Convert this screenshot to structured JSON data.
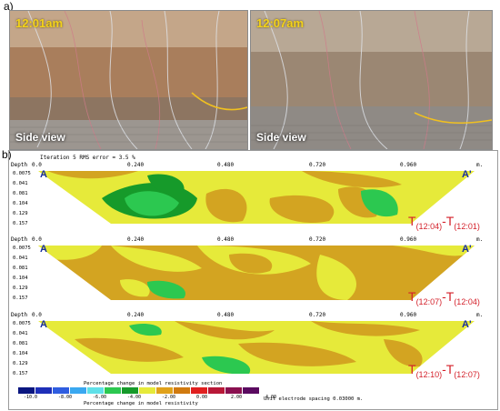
{
  "panel_a": {
    "letter": "a)",
    "photos": [
      {
        "time": "12:01am",
        "caption": "Side view"
      },
      {
        "time": "12:07am",
        "caption": "Side view"
      }
    ]
  },
  "panel_b": {
    "letter": "b)",
    "header": "Iteration 5 RMS error = 3.5 %",
    "depth_title": "Depth",
    "unit": "m.",
    "x_ticks": [
      "0.0",
      "0.240",
      "0.480",
      "0.720",
      "0.960"
    ],
    "y_labels": [
      "0.0075",
      "0.041",
      "0.081",
      "0.104",
      "0.129",
      "0.157"
    ],
    "end_left": "A",
    "end_right": "A'",
    "sections": [
      {
        "t1": "(12:04)",
        "t2": "(12:01)"
      },
      {
        "t1": "(12:07)",
        "t2": "(12:04)"
      },
      {
        "t1": "(12:10)",
        "t2": "(12:07)"
      }
    ],
    "legend": {
      "title": "Percentage change in model resistivity section",
      "title_bottom": "Percentage change in model resistivity",
      "ticks": [
        "-10.0",
        "-8.00",
        "-6.00",
        "-4.00",
        "-2.00",
        "0.00",
        "2.00",
        "4.00"
      ],
      "colors": [
        "#0a1680",
        "#1e2fb8",
        "#2f5de0",
        "#3aa8f0",
        "#5fe0e8",
        "#2cc850",
        "#169a2a",
        "#e6ea3a",
        "#e0a11a",
        "#d07a10",
        "#e02020",
        "#b81838",
        "#8a1050",
        "#5a0a60"
      ],
      "spacing": "Unit electrode spacing 0.03000 m."
    }
  }
}
